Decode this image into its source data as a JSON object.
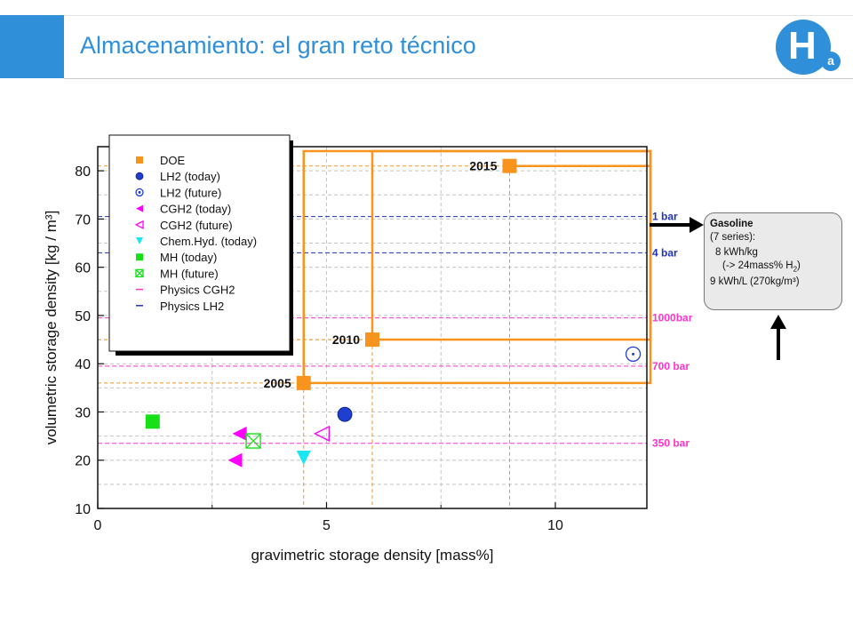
{
  "header": {
    "title": "Almacenamiento: el gran reto técnico",
    "logo_letter": "H",
    "logo_sub": "a"
  },
  "gasoline_box": {
    "title": "Gasoline",
    "line1": "(7 series):",
    "line2": "8 kWh/kg",
    "line3": "(-> 24mass% H",
    "line3_sub": "2",
    "line3_end": ")",
    "line4": "9 kWh/L (270kg/m³)"
  },
  "colors": {
    "doe": "#f7941d",
    "lh2": "#1f3fd0",
    "cgh2": "#ff00ff",
    "chem": "#19e6f0",
    "mh": "#18e018",
    "physics_cgh2": "#ff33cc",
    "physics_lh2": "#2233bb"
  },
  "chart_data": {
    "type": "scatter",
    "xlabel": "gravimetric storage density [mass%]",
    "ylabel": "volumetric storage density [kg / m³]",
    "xlim": [
      0,
      12
    ],
    "ylim": [
      10,
      85
    ],
    "x_ticks": [
      0,
      5,
      10
    ],
    "y_ticks": [
      10,
      20,
      30,
      40,
      50,
      60,
      70,
      80
    ],
    "grid": true,
    "legend_position": "top-left",
    "legend": [
      {
        "label": "DOE",
        "marker": "square-filled",
        "color": "#f7941d"
      },
      {
        "label": "LH2 (today)",
        "marker": "sphere",
        "color": "#1f3fd0"
      },
      {
        "label": "LH2 (future)",
        "marker": "circle-dot",
        "color": "#1f3fd0"
      },
      {
        "label": "CGH2 (today)",
        "marker": "triangle-left-filled",
        "color": "#ff00ff"
      },
      {
        "label": "CGH2 (future)",
        "marker": "triangle-left-open",
        "color": "#ff00ff"
      },
      {
        "label": "Chem.Hyd. (today)",
        "marker": "triangle-down-filled",
        "color": "#19e6f0"
      },
      {
        "label": "MH (today)",
        "marker": "square-filled",
        "color": "#18e018"
      },
      {
        "label": "MH (future)",
        "marker": "square-crossed",
        "color": "#18e018"
      },
      {
        "label": "Physics CGH2",
        "marker": "dash",
        "color": "#ff33cc"
      },
      {
        "label": "Physics LH2",
        "marker": "dash",
        "color": "#2233bb"
      }
    ],
    "doe_targets": [
      {
        "label": "2005",
        "x": 4.5,
        "y": 36
      },
      {
        "label": "2010",
        "x": 6.0,
        "y": 45
      },
      {
        "label": "2015",
        "x": 9.0,
        "y": 81
      }
    ],
    "points": [
      {
        "series": "LH2 (today)",
        "x": 5.4,
        "y": 29.5
      },
      {
        "series": "LH2 (future)",
        "x": 11.7,
        "y": 42
      },
      {
        "series": "CGH2 (today)",
        "x": 3.1,
        "y": 25.5
      },
      {
        "series": "CGH2 (today)",
        "x": 3.0,
        "y": 20
      },
      {
        "series": "CGH2 (future)",
        "x": 4.9,
        "y": 25.5
      },
      {
        "series": "Chem.Hyd. (today)",
        "x": 4.5,
        "y": 20.5
      },
      {
        "series": "MH (today)",
        "x": 1.2,
        "y": 28
      },
      {
        "series": "MH (future)",
        "x": 3.4,
        "y": 24
      }
    ],
    "physics_lines": [
      {
        "label": "1 bar",
        "y": 70.5,
        "series": "Physics LH2"
      },
      {
        "label": "4 bar",
        "y": 63,
        "series": "Physics LH2"
      },
      {
        "label": "1000bar",
        "y": 49.5,
        "series": "Physics CGH2"
      },
      {
        "label": "700 bar",
        "y": 39.5,
        "series": "Physics CGH2"
      },
      {
        "label": "350 bar",
        "y": 23.5,
        "series": "Physics CGH2"
      }
    ]
  }
}
